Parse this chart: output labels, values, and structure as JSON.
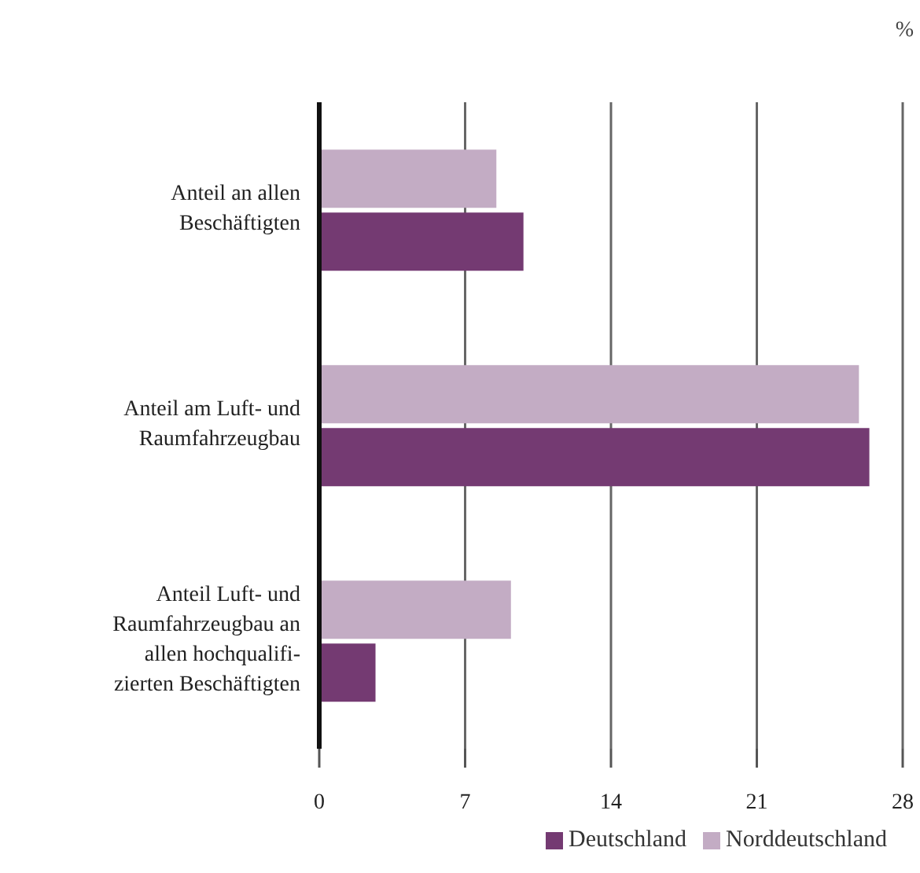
{
  "chart_data": {
    "type": "bar",
    "orientation": "horizontal",
    "xlabel": "%",
    "categories": [
      "Anteil an allen\nBeschäftigten",
      "Anteil am Luft- und\nRaumfahrzeugbau",
      "Anteil Luft- und\nRaumfahrzeugbau an\nallen hochqualifi-\nzierten Beschäftigten"
    ],
    "series": [
      {
        "name": "Norddeutschland",
        "color": "#c3acc4",
        "values": [
          8.5,
          25.9,
          9.2
        ]
      },
      {
        "name": "Deutschland",
        "color": "#743a72",
        "values": [
          9.8,
          26.4,
          2.7
        ]
      }
    ],
    "xlim": [
      0,
      28
    ],
    "xticks": [
      0,
      7,
      14,
      21,
      28
    ],
    "grid": "x",
    "legend": "bottom right"
  }
}
